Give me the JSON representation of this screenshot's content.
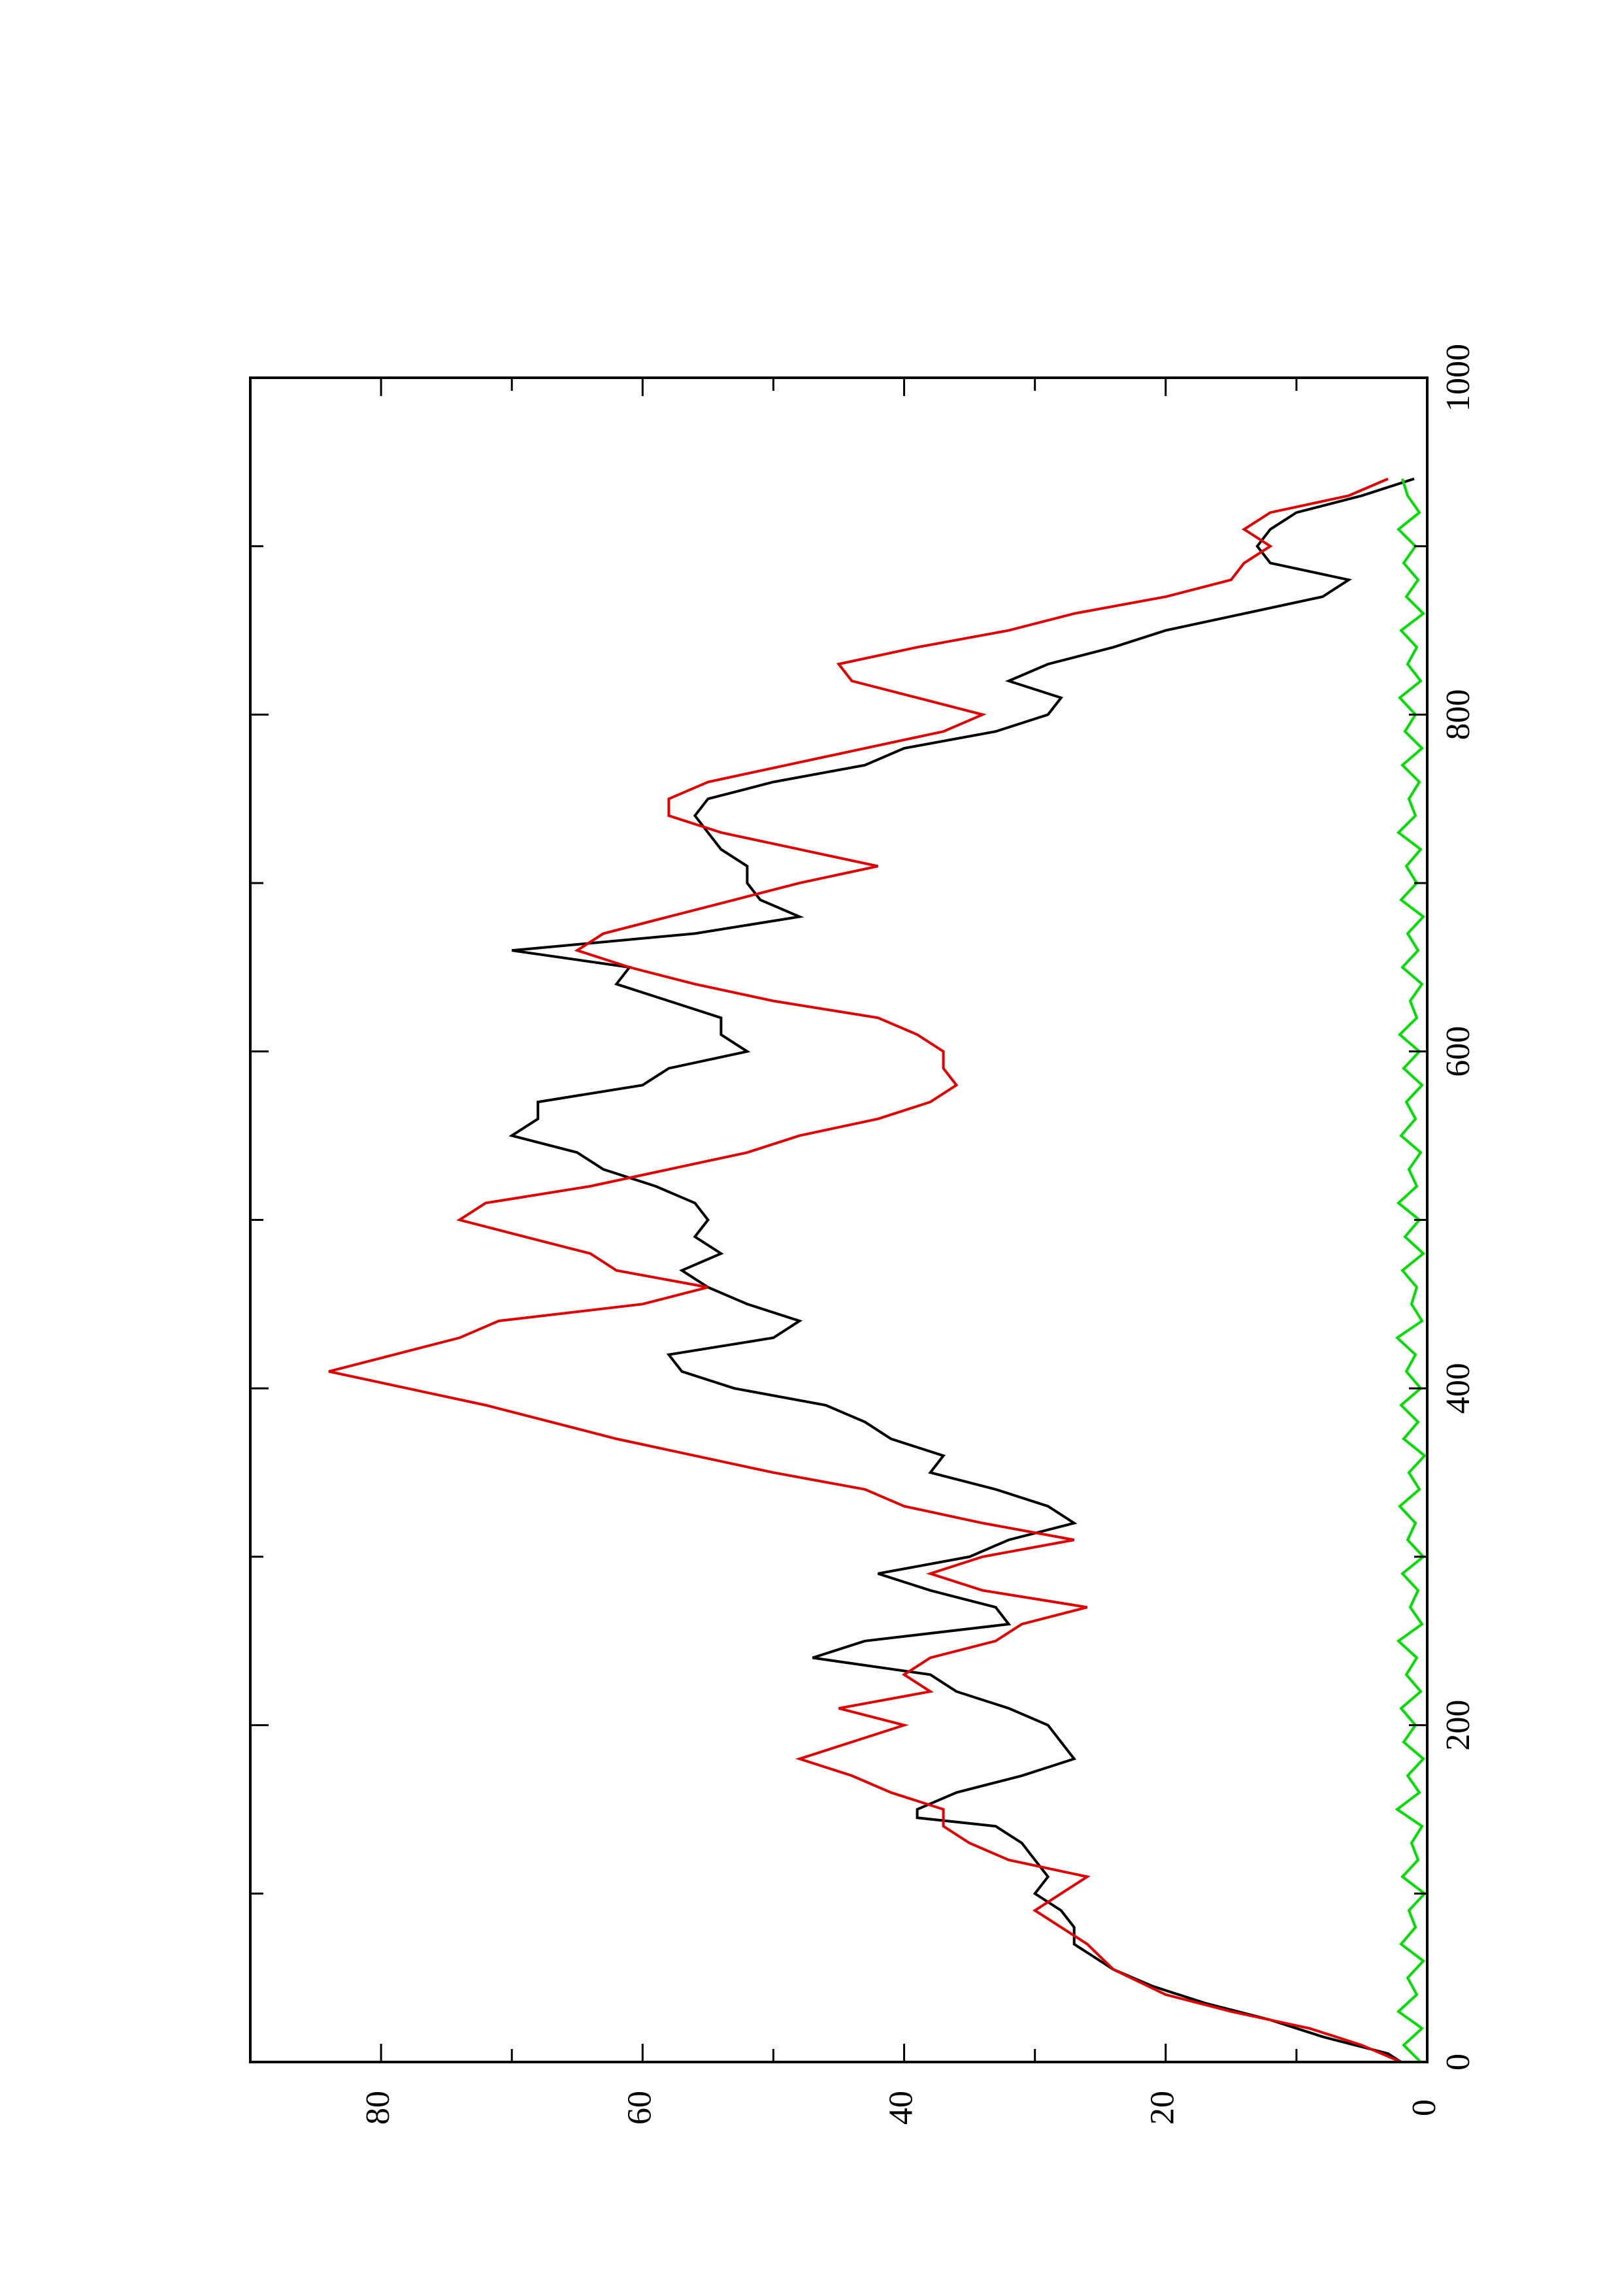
{
  "chart_data": {
    "type": "line",
    "orientation": "rotated-90-ccw",
    "x_axis": {
      "ticks": [
        0,
        200,
        400,
        600,
        800,
        1000
      ],
      "minor_ticks": [
        100,
        300,
        500,
        700,
        900
      ],
      "range": [
        0,
        1000
      ]
    },
    "y_axis": {
      "ticks": [
        0,
        20,
        40,
        60,
        80
      ],
      "minor_ticks": [
        10,
        30,
        50,
        70
      ],
      "range": [
        0,
        90
      ]
    },
    "grid": false,
    "legend": "none",
    "series": [
      {
        "color": "#000000",
        "points": [
          [
            0,
            2
          ],
          [
            5,
            3
          ],
          [
            15,
            8
          ],
          [
            25,
            12
          ],
          [
            35,
            17
          ],
          [
            45,
            21
          ],
          [
            55,
            24
          ],
          [
            65,
            26
          ],
          [
            70,
            27
          ],
          [
            80,
            27
          ],
          [
            90,
            28
          ],
          [
            100,
            30
          ],
          [
            110,
            29
          ],
          [
            120,
            30
          ],
          [
            130,
            31
          ],
          [
            140,
            33
          ],
          [
            145,
            39
          ],
          [
            150,
            39
          ],
          [
            160,
            36
          ],
          [
            170,
            31
          ],
          [
            180,
            27
          ],
          [
            190,
            28
          ],
          [
            200,
            29
          ],
          [
            210,
            32
          ],
          [
            220,
            36
          ],
          [
            230,
            38
          ],
          [
            240,
            47
          ],
          [
            250,
            43
          ],
          [
            260,
            32
          ],
          [
            270,
            33
          ],
          [
            280,
            38
          ],
          [
            290,
            42
          ],
          [
            300,
            35
          ],
          [
            310,
            32
          ],
          [
            320,
            27
          ],
          [
            330,
            29
          ],
          [
            340,
            33
          ],
          [
            350,
            38
          ],
          [
            360,
            37
          ],
          [
            370,
            41
          ],
          [
            380,
            43
          ],
          [
            390,
            46
          ],
          [
            400,
            53
          ],
          [
            410,
            57
          ],
          [
            420,
            58
          ],
          [
            430,
            50
          ],
          [
            440,
            48
          ],
          [
            450,
            52
          ],
          [
            460,
            55
          ],
          [
            470,
            57
          ],
          [
            480,
            54
          ],
          [
            490,
            56
          ],
          [
            500,
            55
          ],
          [
            510,
            56
          ],
          [
            520,
            59
          ],
          [
            530,
            63
          ],
          [
            540,
            65
          ],
          [
            550,
            70
          ],
          [
            560,
            68
          ],
          [
            570,
            68
          ],
          [
            580,
            60
          ],
          [
            590,
            58
          ],
          [
            600,
            52
          ],
          [
            610,
            54
          ],
          [
            620,
            54
          ],
          [
            630,
            58
          ],
          [
            640,
            62
          ],
          [
            650,
            61
          ],
          [
            660,
            70
          ],
          [
            670,
            56
          ],
          [
            680,
            48
          ],
          [
            690,
            51
          ],
          [
            700,
            52
          ],
          [
            710,
            52
          ],
          [
            720,
            54
          ],
          [
            730,
            55
          ],
          [
            740,
            56
          ],
          [
            750,
            55
          ],
          [
            760,
            50
          ],
          [
            770,
            43
          ],
          [
            780,
            40
          ],
          [
            790,
            33
          ],
          [
            800,
            29
          ],
          [
            810,
            28
          ],
          [
            820,
            32
          ],
          [
            830,
            29
          ],
          [
            840,
            24
          ],
          [
            850,
            20
          ],
          [
            860,
            14
          ],
          [
            870,
            8
          ],
          [
            880,
            6
          ],
          [
            890,
            12
          ],
          [
            900,
            13
          ],
          [
            910,
            12
          ],
          [
            920,
            10
          ],
          [
            930,
            5
          ],
          [
            940,
            1
          ]
        ]
      },
      {
        "color": "#e00000",
        "points": [
          [
            0,
            2
          ],
          [
            10,
            5
          ],
          [
            20,
            9
          ],
          [
            30,
            15
          ],
          [
            40,
            20
          ],
          [
            55,
            24
          ],
          [
            70,
            26
          ],
          [
            80,
            28
          ],
          [
            90,
            30
          ],
          [
            100,
            28
          ],
          [
            110,
            26
          ],
          [
            120,
            32
          ],
          [
            130,
            35
          ],
          [
            140,
            37
          ],
          [
            150,
            37
          ],
          [
            160,
            41
          ],
          [
            170,
            44
          ],
          [
            180,
            48
          ],
          [
            190,
            44
          ],
          [
            200,
            40
          ],
          [
            210,
            45
          ],
          [
            220,
            38
          ],
          [
            230,
            40
          ],
          [
            240,
            38
          ],
          [
            250,
            33
          ],
          [
            260,
            31
          ],
          [
            270,
            26
          ],
          [
            280,
            34
          ],
          [
            290,
            38
          ],
          [
            300,
            34
          ],
          [
            310,
            27
          ],
          [
            320,
            34
          ],
          [
            330,
            40
          ],
          [
            340,
            43
          ],
          [
            350,
            50
          ],
          [
            360,
            56
          ],
          [
            370,
            62
          ],
          [
            380,
            67
          ],
          [
            390,
            72
          ],
          [
            400,
            78
          ],
          [
            410,
            84
          ],
          [
            420,
            79
          ],
          [
            430,
            74
          ],
          [
            440,
            71
          ],
          [
            450,
            60
          ],
          [
            460,
            55
          ],
          [
            470,
            62
          ],
          [
            480,
            64
          ],
          [
            490,
            69
          ],
          [
            500,
            74
          ],
          [
            510,
            72
          ],
          [
            520,
            64
          ],
          [
            530,
            58
          ],
          [
            540,
            52
          ],
          [
            550,
            48
          ],
          [
            560,
            42
          ],
          [
            570,
            38
          ],
          [
            580,
            36
          ],
          [
            590,
            37
          ],
          [
            600,
            37
          ],
          [
            610,
            39
          ],
          [
            620,
            42
          ],
          [
            630,
            50
          ],
          [
            640,
            56
          ],
          [
            650,
            61
          ],
          [
            660,
            65
          ],
          [
            670,
            63
          ],
          [
            680,
            58
          ],
          [
            690,
            53
          ],
          [
            700,
            48
          ],
          [
            710,
            42
          ],
          [
            720,
            48
          ],
          [
            730,
            54
          ],
          [
            740,
            58
          ],
          [
            750,
            58
          ],
          [
            760,
            55
          ],
          [
            770,
            49
          ],
          [
            780,
            43
          ],
          [
            790,
            37
          ],
          [
            800,
            34
          ],
          [
            810,
            39
          ],
          [
            820,
            44
          ],
          [
            830,
            45
          ],
          [
            840,
            39
          ],
          [
            850,
            32
          ],
          [
            860,
            27
          ],
          [
            870,
            20
          ],
          [
            880,
            15
          ],
          [
            890,
            14
          ],
          [
            900,
            12
          ],
          [
            910,
            14
          ],
          [
            920,
            12
          ],
          [
            930,
            6
          ],
          [
            940,
            3
          ]
        ]
      },
      {
        "color": "#00dd00",
        "points": [
          [
            0,
            0.5
          ],
          [
            10,
            1.8
          ],
          [
            20,
            0.4
          ],
          [
            30,
            2.2
          ],
          [
            40,
            0.8
          ],
          [
            50,
            1.5
          ],
          [
            60,
            0.3
          ],
          [
            70,
            2.0
          ],
          [
            80,
            0.9
          ],
          [
            90,
            1.4
          ],
          [
            100,
            0.2
          ],
          [
            110,
            1.9
          ],
          [
            120,
            0.7
          ],
          [
            130,
            1.2
          ],
          [
            140,
            0.4
          ],
          [
            150,
            2.3
          ],
          [
            160,
            0.6
          ],
          [
            170,
            1.5
          ],
          [
            180,
            0.3
          ],
          [
            190,
            1.8
          ],
          [
            200,
            0.9
          ],
          [
            210,
            2.0
          ],
          [
            220,
            0.5
          ],
          [
            230,
            1.6
          ],
          [
            240,
            0.8
          ],
          [
            250,
            2.2
          ],
          [
            260,
            0.4
          ],
          [
            270,
            1.3
          ],
          [
            280,
            0.7
          ],
          [
            290,
            1.9
          ],
          [
            300,
            0.3
          ],
          [
            310,
            1.5
          ],
          [
            320,
            0.9
          ],
          [
            330,
            2.1
          ],
          [
            340,
            0.6
          ],
          [
            350,
            1.4
          ],
          [
            360,
            0.2
          ],
          [
            370,
            1.8
          ],
          [
            380,
            0.7
          ],
          [
            390,
            2.0
          ],
          [
            400,
            0.5
          ],
          [
            410,
            1.6
          ],
          [
            420,
            0.9
          ],
          [
            430,
            2.3
          ],
          [
            440,
            0.4
          ],
          [
            450,
            1.2
          ],
          [
            460,
            0.8
          ],
          [
            470,
            1.9
          ],
          [
            480,
            0.3
          ],
          [
            490,
            1.7
          ],
          [
            500,
            0.6
          ],
          [
            510,
            2.2
          ],
          [
            520,
            0.8
          ],
          [
            530,
            1.4
          ],
          [
            540,
            0.5
          ],
          [
            550,
            2.0
          ],
          [
            560,
            0.9
          ],
          [
            570,
            1.6
          ],
          [
            580,
            0.4
          ],
          [
            590,
            1.8
          ],
          [
            600,
            0.6
          ],
          [
            610,
            2.1
          ],
          [
            620,
            0.8
          ],
          [
            630,
            1.3
          ],
          [
            640,
            0.4
          ],
          [
            650,
            1.9
          ],
          [
            660,
            0.7
          ],
          [
            670,
            1.5
          ],
          [
            680,
            0.3
          ],
          [
            690,
            2.0
          ],
          [
            700,
            0.8
          ],
          [
            710,
            1.6
          ],
          [
            720,
            0.5
          ],
          [
            730,
            2.2
          ],
          [
            740,
            0.9
          ],
          [
            750,
            1.4
          ],
          [
            760,
            0.6
          ],
          [
            770,
            1.9
          ],
          [
            780,
            0.4
          ],
          [
            790,
            1.7
          ],
          [
            800,
            0.9
          ],
          [
            810,
            2.1
          ],
          [
            820,
            0.5
          ],
          [
            830,
            1.5
          ],
          [
            840,
            0.8
          ],
          [
            850,
            2.0
          ],
          [
            860,
            0.3
          ],
          [
            870,
            1.6
          ],
          [
            880,
            0.7
          ],
          [
            890,
            1.8
          ],
          [
            900,
            0.9
          ],
          [
            910,
            2.2
          ],
          [
            920,
            0.6
          ],
          [
            930,
            1.5
          ],
          [
            940,
            1.9
          ]
        ]
      }
    ]
  }
}
